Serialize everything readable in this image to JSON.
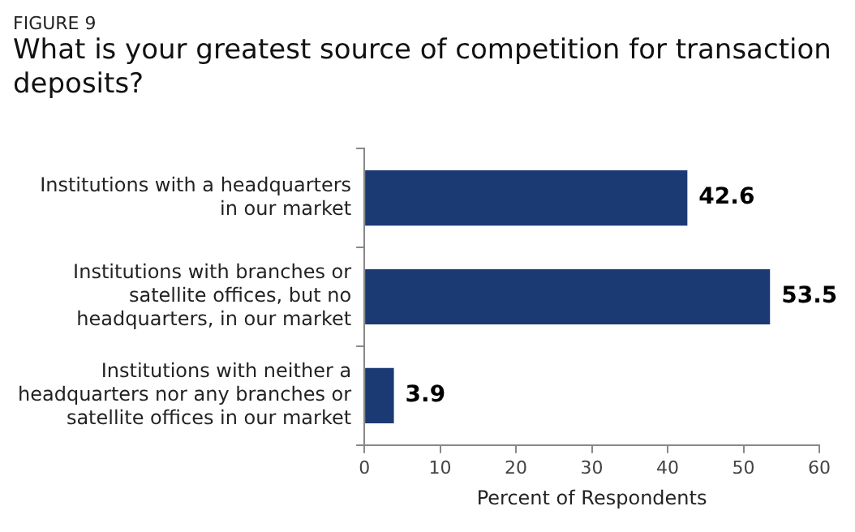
{
  "chart_data": {
    "type": "bar",
    "orientation": "horizontal",
    "subtitle": "FIGURE 9",
    "title": "What is your greatest source of competition for transaction deposits?",
    "categories": [
      "Institutions with a headquarters in our market",
      "Institutions with branches or satellite offices, but no headquarters, in our market",
      "Institutions with neither a headquarters nor any branches or satellite offices in our market"
    ],
    "values": [
      42.6,
      53.5,
      3.9
    ],
    "color": "#1b3a73",
    "xlabel": "Percent of Respondents",
    "xlim": [
      0,
      60
    ],
    "xticks": [
      0,
      10,
      20,
      30,
      40,
      50,
      60
    ],
    "data_labels": true,
    "grid": false,
    "legend": false
  }
}
